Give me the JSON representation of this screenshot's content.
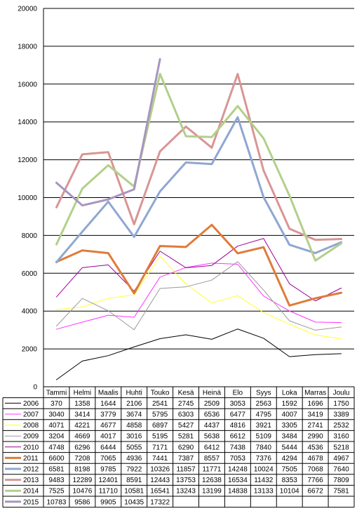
{
  "chart_data": {
    "type": "line",
    "title": "",
    "xlabel": "",
    "ylabel": "",
    "ylim": [
      0,
      20000
    ],
    "yticks": [
      0,
      2000,
      4000,
      6000,
      8000,
      10000,
      12000,
      14000,
      16000,
      18000,
      20000
    ],
    "grid": "horizontal",
    "legend": "data-table-below",
    "categories": [
      "Tammi",
      "Helmi",
      "Maalis",
      "Huhti",
      "Touko",
      "Kesä",
      "Heinä",
      "Elo",
      "Syys",
      "Loka",
      "Marras",
      "Joulu"
    ],
    "series": [
      {
        "name": "2006",
        "color": "#000000",
        "width": 1,
        "values": [
          370,
          1358,
          1644,
          2106,
          2541,
          2745,
          2509,
          3053,
          2563,
          1592,
          1696,
          1750
        ]
      },
      {
        "name": "2007",
        "color": "#ff33ff",
        "width": 1,
        "values": [
          3040,
          3414,
          3779,
          3674,
          5795,
          6303,
          6536,
          6477,
          4795,
          4007,
          3419,
          3389
        ]
      },
      {
        "name": "2008",
        "color": "#ffff33",
        "width": 1,
        "values": [
          4071,
          4221,
          4677,
          4858,
          6897,
          5427,
          4437,
          4816,
          3921,
          3305,
          2741,
          2532
        ]
      },
      {
        "name": "2009",
        "color": "#999999",
        "width": 1,
        "values": [
          3204,
          4669,
          4017,
          3016,
          5195,
          5281,
          5638,
          6612,
          5109,
          3484,
          2990,
          3160
        ]
      },
      {
        "name": "2010",
        "color": "#990099",
        "width": 1,
        "values": [
          4748,
          6296,
          6444,
          5055,
          7171,
          6290,
          6412,
          7438,
          7840,
          5444,
          4536,
          5218
        ]
      },
      {
        "name": "2011",
        "color": "#e07b39",
        "width": 3,
        "values": [
          6600,
          7208,
          7065,
          4936,
          7441,
          7387,
          8557,
          7053,
          7376,
          4294,
          4678,
          4967
        ]
      },
      {
        "name": "2012",
        "color": "#8fa7d1",
        "width": 3,
        "values": [
          6581,
          8198,
          9785,
          7922,
          10326,
          11857,
          11771,
          14248,
          10024,
          7505,
          7068,
          7640
        ]
      },
      {
        "name": "2013",
        "color": "#d99594",
        "width": 3,
        "values": [
          9483,
          12289,
          12401,
          8591,
          12443,
          13753,
          12638,
          16534,
          11432,
          8353,
          7766,
          7809
        ]
      },
      {
        "name": "2014",
        "color": "#b3cf8a",
        "width": 3,
        "values": [
          7525,
          10476,
          11710,
          10581,
          16541,
          13243,
          13199,
          14838,
          13133,
          10104,
          6672,
          7581
        ]
      },
      {
        "name": "2015",
        "color": "#a895c0",
        "width": 3,
        "values": [
          10783,
          9586,
          9905,
          10435,
          17322,
          null,
          null,
          null,
          null,
          null,
          null,
          null
        ]
      }
    ]
  }
}
